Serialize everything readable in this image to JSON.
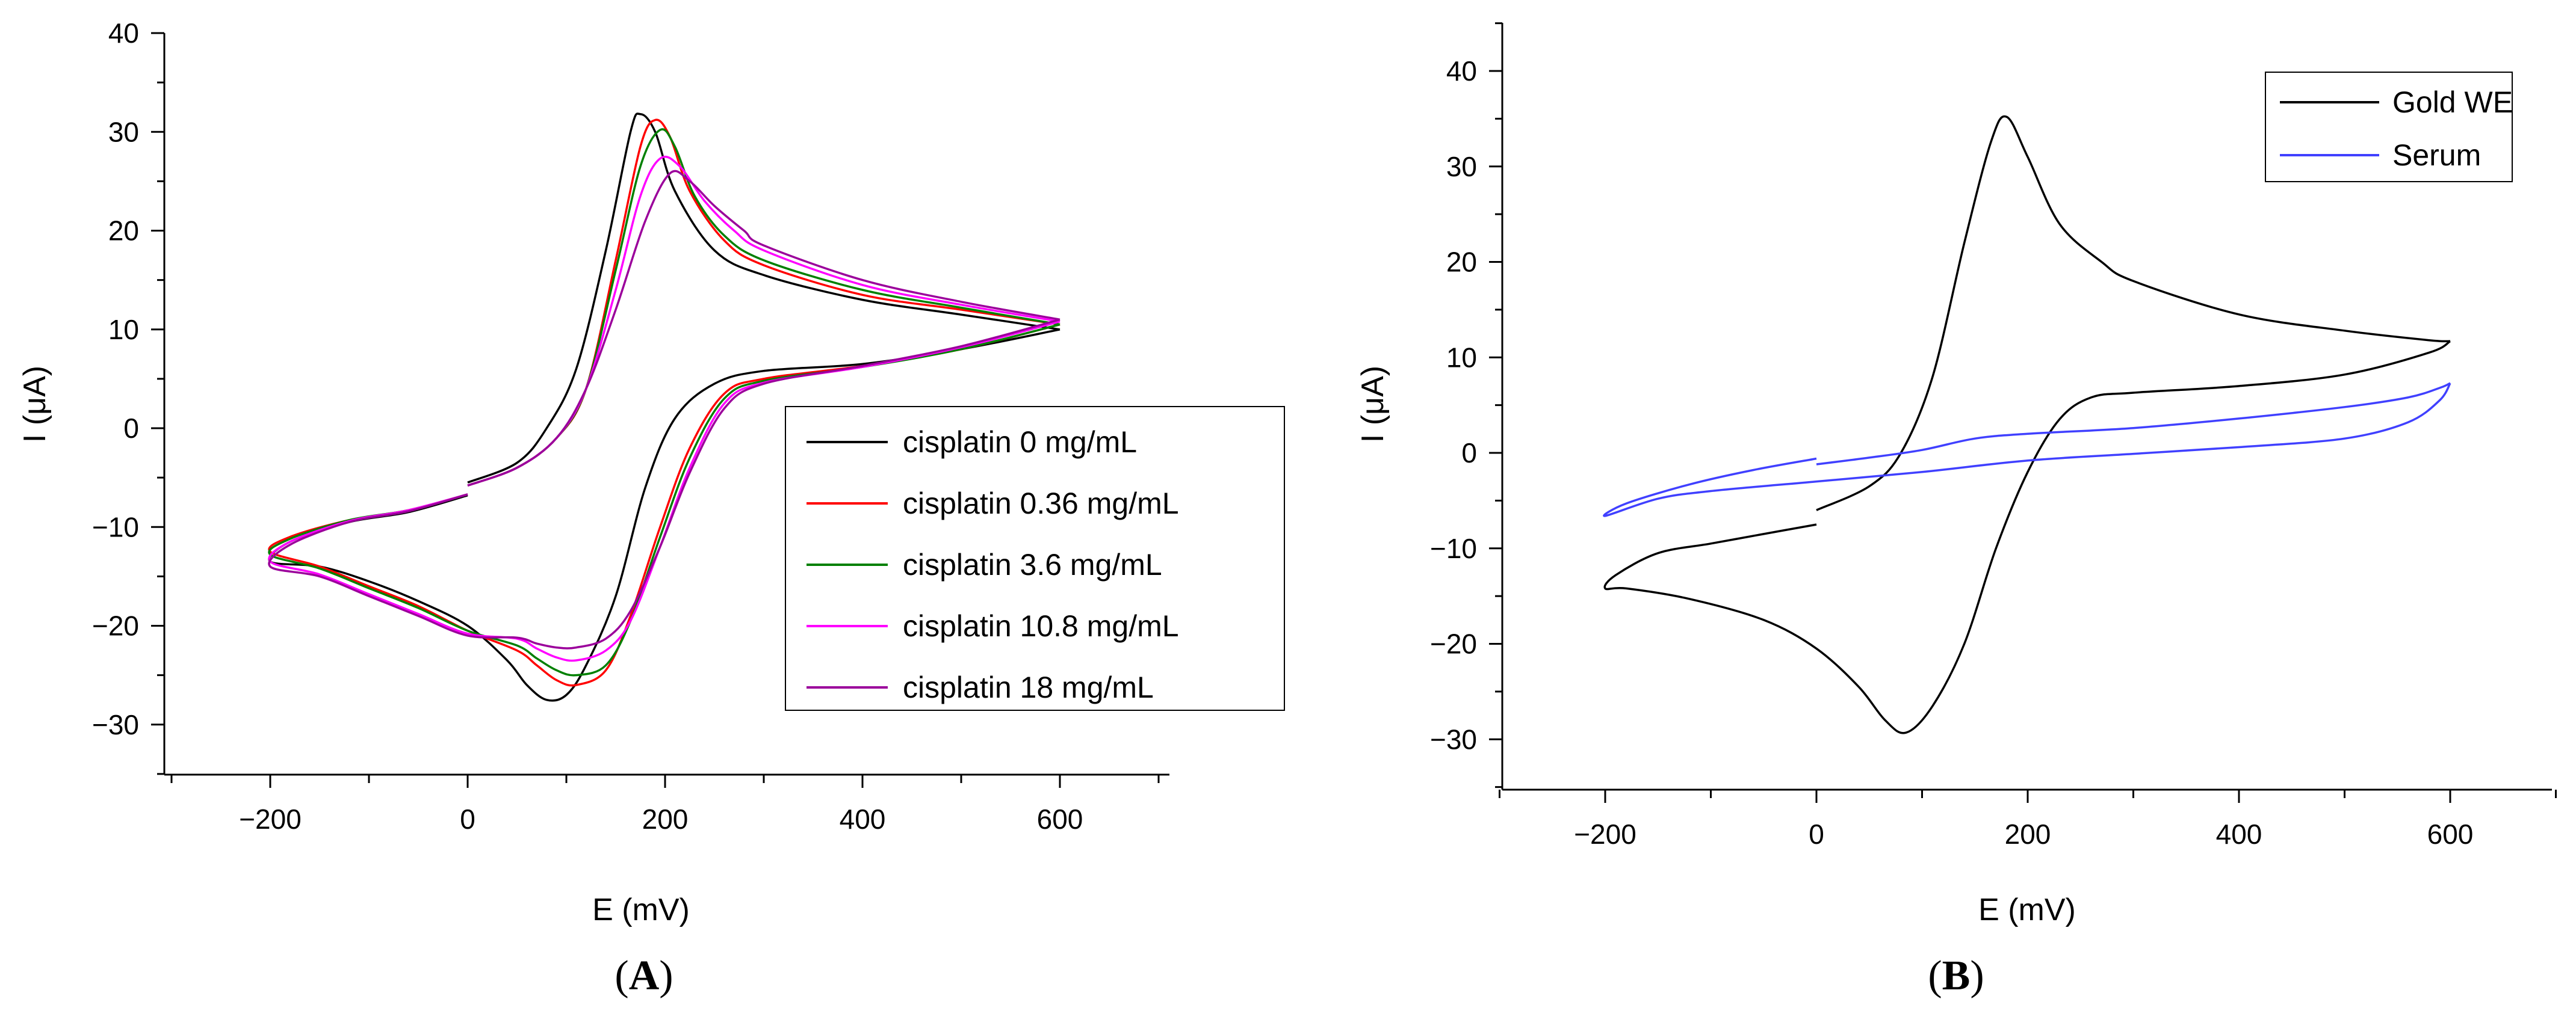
{
  "chart_data": [
    {
      "type": "line",
      "panel_label": "A",
      "xlabel": "E (mV)",
      "ylabel": "I (μA)",
      "xlim": [
        -300,
        700
      ],
      "ylim": [
        -35,
        40
      ],
      "xticks": [
        -200,
        0,
        200,
        400,
        600
      ],
      "xtick_labels": [
        "−200",
        "0",
        "200",
        "400",
        "600"
      ],
      "yticks": [
        -30,
        -20,
        -10,
        0,
        10,
        20,
        30,
        40
      ],
      "ytick_labels": [
        "−30",
        "−20",
        "−10",
        "0",
        "10",
        "20",
        "30",
        "40"
      ],
      "legend_position": "lower-right",
      "series": [
        {
          "name": "cisplatin 0 mg/mL",
          "color": "#000000",
          "upper": [
            [
              0,
              -5.5
            ],
            [
              50,
              -3.5
            ],
            [
              80,
              0
            ],
            [
              110,
              6
            ],
            [
              140,
              18
            ],
            [
              165,
              30
            ],
            [
              175,
              31.8
            ],
            [
              190,
              30
            ],
            [
              210,
              24
            ],
            [
              250,
              18
            ],
            [
              300,
              15.5
            ],
            [
              400,
              13
            ],
            [
              500,
              11.5
            ],
            [
              600,
              10
            ]
          ],
          "lower": [
            [
              600,
              10
            ],
            [
              500,
              8
            ],
            [
              400,
              6.5
            ],
            [
              300,
              5.8
            ],
            [
              250,
              4.5
            ],
            [
              210,
              1
            ],
            [
              180,
              -6
            ],
            [
              150,
              -17
            ],
            [
              120,
              -24
            ],
            [
              100,
              -27
            ],
            [
              80,
              -27.5
            ],
            [
              60,
              -26
            ],
            [
              40,
              -23.5
            ],
            [
              0,
              -20
            ],
            [
              -50,
              -17.5
            ],
            [
              -100,
              -15.5
            ],
            [
              -150,
              -14
            ],
            [
              -200,
              -13.5
            ],
            [
              -180,
              -11.5
            ],
            [
              -120,
              -9.5
            ],
            [
              -60,
              -8.5
            ],
            [
              0,
              -6.8
            ]
          ]
        },
        {
          "name": "cisplatin 0.36 mg/mL",
          "color": "#ff0000",
          "upper": [
            [
              0,
              -5.8
            ],
            [
              50,
              -4
            ],
            [
              90,
              -1
            ],
            [
              120,
              4
            ],
            [
              150,
              17
            ],
            [
              175,
              28.5
            ],
            [
              190,
              31.2
            ],
            [
              205,
              29.5
            ],
            [
              225,
              24
            ],
            [
              260,
              19
            ],
            [
              300,
              16.5
            ],
            [
              400,
              13.5
            ],
            [
              500,
              12
            ],
            [
              600,
              10.5
            ]
          ],
          "lower": [
            [
              600,
              10.5
            ],
            [
              500,
              8
            ],
            [
              400,
              6.3
            ],
            [
              300,
              5
            ],
            [
              260,
              3.5
            ],
            [
              225,
              -2
            ],
            [
              195,
              -10
            ],
            [
              165,
              -19
            ],
            [
              140,
              -24.5
            ],
            [
              110,
              -26
            ],
            [
              90,
              -25.5
            ],
            [
              70,
              -24
            ],
            [
              50,
              -22.5
            ],
            [
              0,
              -20.5
            ],
            [
              -50,
              -18
            ],
            [
              -100,
              -16
            ],
            [
              -150,
              -14
            ],
            [
              -200,
              -12.5
            ],
            [
              -180,
              -11
            ],
            [
              -120,
              -9.3
            ],
            [
              -60,
              -8.3
            ],
            [
              0,
              -6.7
            ]
          ]
        },
        {
          "name": "cisplatin 3.6 mg/mL",
          "color": "#008000",
          "upper": [
            [
              0,
              -5.8
            ],
            [
              50,
              -4
            ],
            [
              90,
              -1
            ],
            [
              120,
              4
            ],
            [
              150,
              16
            ],
            [
              175,
              26.5
            ],
            [
              195,
              30.2
            ],
            [
              210,
              28.5
            ],
            [
              230,
              23.5
            ],
            [
              260,
              19.5
            ],
            [
              300,
              17
            ],
            [
              400,
              14
            ],
            [
              500,
              12.2
            ],
            [
              600,
              10.5
            ]
          ],
          "lower": [
            [
              600,
              10.5
            ],
            [
              500,
              8
            ],
            [
              400,
              6.2
            ],
            [
              300,
              4.8
            ],
            [
              260,
              3
            ],
            [
              225,
              -3
            ],
            [
              195,
              -11
            ],
            [
              165,
              -19.5
            ],
            [
              140,
              -24
            ],
            [
              110,
              -25
            ],
            [
              90,
              -24.5
            ],
            [
              70,
              -23.3
            ],
            [
              50,
              -22
            ],
            [
              0,
              -20.5
            ],
            [
              -50,
              -18.2
            ],
            [
              -100,
              -16.2
            ],
            [
              -150,
              -14.2
            ],
            [
              -200,
              -12.8
            ],
            [
              -180,
              -11.2
            ],
            [
              -120,
              -9.3
            ],
            [
              -60,
              -8.3
            ],
            [
              0,
              -6.7
            ]
          ]
        },
        {
          "name": "cisplatin 10.8 mg/mL",
          "color": "#ff00ff",
          "upper": [
            [
              0,
              -5.8
            ],
            [
              50,
              -4
            ],
            [
              90,
              -1
            ],
            [
              120,
              4
            ],
            [
              150,
              14
            ],
            [
              175,
              23.5
            ],
            [
              195,
              27.3
            ],
            [
              215,
              26.5
            ],
            [
              240,
              23
            ],
            [
              270,
              20
            ],
            [
              300,
              18
            ],
            [
              400,
              14.5
            ],
            [
              500,
              12.5
            ],
            [
              600,
              10.8
            ]
          ],
          "lower": [
            [
              600,
              10.8
            ],
            [
              500,
              8.2
            ],
            [
              400,
              6.2
            ],
            [
              300,
              4.6
            ],
            [
              260,
              2.5
            ],
            [
              225,
              -4
            ],
            [
              195,
              -12
            ],
            [
              165,
              -19.5
            ],
            [
              140,
              -22.5
            ],
            [
              110,
              -23.5
            ],
            [
              90,
              -23.2
            ],
            [
              70,
              -22.3
            ],
            [
              50,
              -21.3
            ],
            [
              0,
              -20.8
            ],
            [
              -50,
              -18.8
            ],
            [
              -100,
              -16.8
            ],
            [
              -150,
              -14.8
            ],
            [
              -200,
              -13.5
            ],
            [
              -180,
              -11.5
            ],
            [
              -120,
              -9.4
            ],
            [
              -60,
              -8.3
            ],
            [
              0,
              -6.7
            ]
          ]
        },
        {
          "name": "cisplatin 18 mg/mL",
          "color": "#9b009b",
          "upper": [
            [
              0,
              -5.8
            ],
            [
              50,
              -4
            ],
            [
              90,
              -1
            ],
            [
              120,
              4
            ],
            [
              150,
              12
            ],
            [
              180,
              21
            ],
            [
              205,
              25.8
            ],
            [
              225,
              25
            ],
            [
              250,
              22.5
            ],
            [
              280,
              20
            ],
            [
              300,
              18.5
            ],
            [
              400,
              15
            ],
            [
              500,
              12.8
            ],
            [
              600,
              11
            ]
          ],
          "lower": [
            [
              600,
              11
            ],
            [
              500,
              8.3
            ],
            [
              400,
              6.3
            ],
            [
              300,
              4.5
            ],
            [
              260,
              2
            ],
            [
              225,
              -4.5
            ],
            [
              195,
              -12
            ],
            [
              165,
              -18.5
            ],
            [
              140,
              -21.3
            ],
            [
              110,
              -22.2
            ],
            [
              90,
              -22.2
            ],
            [
              70,
              -21.8
            ],
            [
              50,
              -21.2
            ],
            [
              0,
              -21
            ],
            [
              -50,
              -19
            ],
            [
              -100,
              -17
            ],
            [
              -150,
              -15
            ],
            [
              -200,
              -14
            ],
            [
              -180,
              -11.8
            ],
            [
              -120,
              -9.5
            ],
            [
              -60,
              -8.4
            ],
            [
              0,
              -6.7
            ]
          ]
        }
      ]
    },
    {
      "type": "line",
      "panel_label": "B",
      "xlabel": "E (mV)",
      "ylabel": "I (μA)",
      "xlim": [
        -300,
        700
      ],
      "ylim": [
        -35,
        45
      ],
      "xticks": [
        -200,
        0,
        200,
        400,
        600
      ],
      "xtick_labels": [
        "−200",
        "0",
        "200",
        "400",
        "600"
      ],
      "yticks": [
        -30,
        -20,
        -10,
        0,
        10,
        20,
        30,
        40
      ],
      "ytick_labels": [
        "−30",
        "−20",
        "−10",
        "0",
        "10",
        "20",
        "30",
        "40"
      ],
      "legend_position": "top-right",
      "series": [
        {
          "name": "Gold WE",
          "color": "#000000",
          "upper": [
            [
              0,
              -6
            ],
            [
              50,
              -3.5
            ],
            [
              80,
              0
            ],
            [
              110,
              8
            ],
            [
              140,
              22
            ],
            [
              165,
              32.5
            ],
            [
              180,
              35.2
            ],
            [
              200,
              31
            ],
            [
              230,
              24
            ],
            [
              270,
              20
            ],
            [
              300,
              18
            ],
            [
              400,
              14.5
            ],
            [
              500,
              12.8
            ],
            [
              580,
              11.8
            ],
            [
              600,
              11.7
            ]
          ],
          "lower": [
            [
              600,
              11.7
            ],
            [
              580,
              10.5
            ],
            [
              500,
              8.2
            ],
            [
              400,
              7
            ],
            [
              300,
              6.3
            ],
            [
              260,
              5.8
            ],
            [
              230,
              3.5
            ],
            [
              200,
              -2
            ],
            [
              170,
              -10
            ],
            [
              140,
              -20
            ],
            [
              110,
              -26.5
            ],
            [
              85,
              -29.3
            ],
            [
              65,
              -28
            ],
            [
              40,
              -24.5
            ],
            [
              0,
              -20.5
            ],
            [
              -50,
              -17.5
            ],
            [
              -120,
              -15.3
            ],
            [
              -180,
              -14.2
            ],
            [
              -200,
              -14.2
            ],
            [
              -190,
              -12.8
            ],
            [
              -150,
              -10.5
            ],
            [
              -100,
              -9.5
            ],
            [
              -50,
              -8.5
            ],
            [
              0,
              -7.5
            ]
          ]
        },
        {
          "name": "Serum",
          "color": "#4040ff",
          "upper": [
            [
              0,
              -1.2
            ],
            [
              50,
              -0.5
            ],
            [
              100,
              0.3
            ],
            [
              150,
              1.5
            ],
            [
              200,
              2
            ],
            [
              300,
              2.6
            ],
            [
              400,
              3.6
            ],
            [
              500,
              4.8
            ],
            [
              560,
              5.8
            ],
            [
              590,
              6.8
            ],
            [
              600,
              7.3
            ]
          ],
          "lower": [
            [
              600,
              7.3
            ],
            [
              590,
              5.5
            ],
            [
              560,
              3.2
            ],
            [
              500,
              1.5
            ],
            [
              400,
              0.6
            ],
            [
              300,
              -0.1
            ],
            [
              200,
              -0.8
            ],
            [
              100,
              -2
            ],
            [
              0,
              -3
            ],
            [
              -100,
              -4
            ],
            [
              -150,
              -4.8
            ],
            [
              -200,
              -6.6
            ],
            [
              -180,
              -5.3
            ],
            [
              -120,
              -3.3
            ],
            [
              -60,
              -1.8
            ],
            [
              0,
              -0.6
            ]
          ]
        }
      ]
    }
  ]
}
